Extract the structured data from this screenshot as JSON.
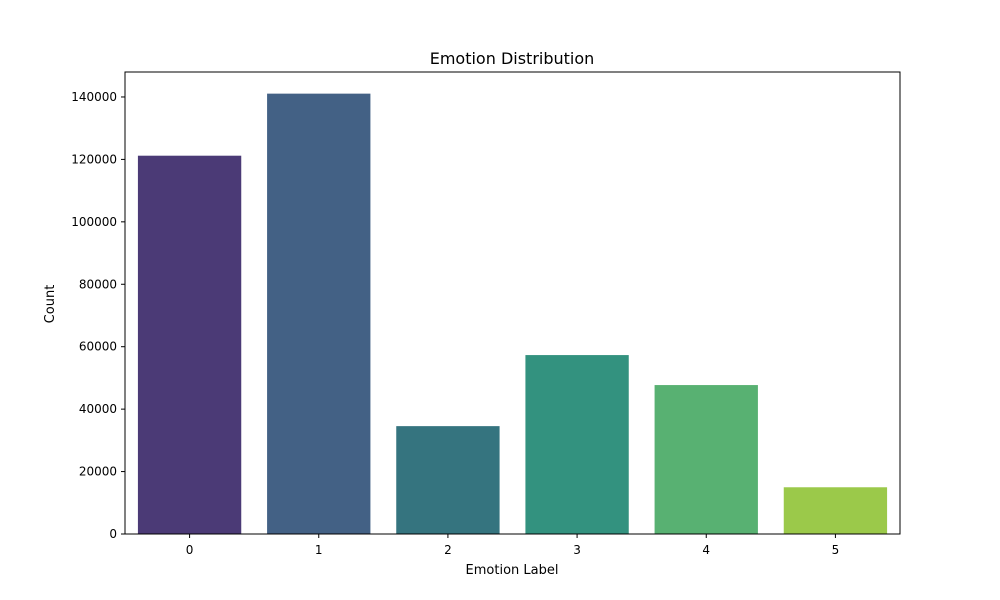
{
  "chart_data": {
    "type": "bar",
    "title": "Emotion Distribution",
    "xlabel": "Emotion Label",
    "ylabel": "Count",
    "categories": [
      "0",
      "1",
      "2",
      "3",
      "4",
      "5"
    ],
    "values": [
      121187,
      141067,
      34554,
      57317,
      47712,
      14972
    ],
    "ylim": [
      0,
      148000
    ],
    "yticks": [
      0,
      20000,
      40000,
      60000,
      80000,
      100000,
      120000,
      140000
    ],
    "ytick_labels": [
      "0",
      "20000",
      "40000",
      "60000",
      "80000",
      "100000",
      "120000",
      "140000"
    ],
    "colors": [
      "#4b3a76",
      "#436185",
      "#35747f",
      "#33927f",
      "#58b172",
      "#9bc94a"
    ],
    "grid": false,
    "legend": "none"
  }
}
